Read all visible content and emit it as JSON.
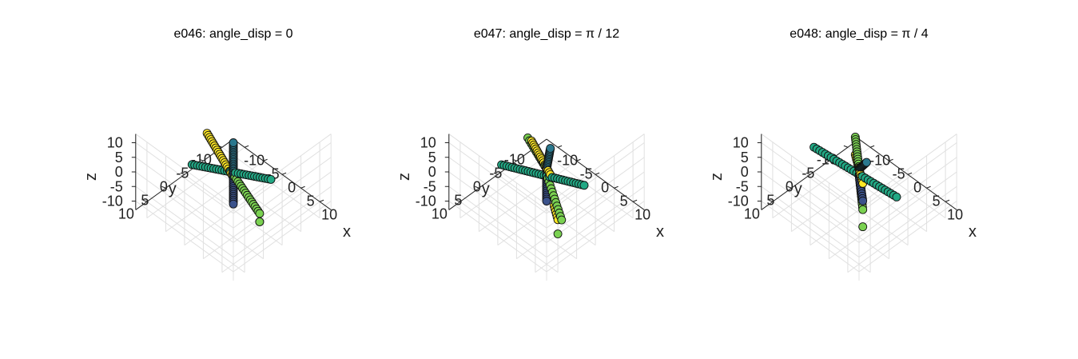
{
  "chart_data": [
    {
      "type": "scatter",
      "title": "e046: angle_disp = 0",
      "xlabel": "x",
      "ylabel": "y",
      "zlabel": "z",
      "xlim": [
        -13,
        13
      ],
      "ylim": [
        -13,
        13
      ],
      "zlim": [
        -13,
        13
      ],
      "xticks": [
        -10,
        -5,
        0,
        5,
        10
      ],
      "yticks": [
        -10,
        -5,
        0,
        5,
        10
      ],
      "zticks": [
        -10,
        -5,
        0,
        5,
        10
      ],
      "xtick_labels": [
        "-10",
        "-5",
        "0",
        "5",
        "10"
      ],
      "ytick_labels": [
        "-10",
        "-5",
        "0",
        "5",
        "10"
      ],
      "ztick_labels": [
        "-10",
        "-5",
        "0",
        "5",
        "10"
      ],
      "grid": true,
      "series": [
        {
          "color": "#fde725",
          "start": [
            -9,
            -2,
            3
          ],
          "end": [
            1,
            1,
            0
          ],
          "count": 22
        },
        {
          "color": "#7ad151",
          "start": [
            0,
            0,
            -1
          ],
          "end": [
            9,
            2,
            -4
          ],
          "count": 18
        },
        {
          "color": "#7ad151",
          "start": [
            10,
            3,
            -5
          ],
          "end": [
            10,
            3,
            -5
          ],
          "count": 2
        },
        {
          "color": "#2a788e",
          "start": [
            0,
            0,
            1
          ],
          "end": [
            0,
            0,
            10
          ],
          "count": 16
        },
        {
          "color": "#3b528b",
          "start": [
            0,
            0,
            -1
          ],
          "end": [
            0,
            0,
            -11
          ],
          "count": 16
        },
        {
          "color": "#22a884",
          "start": [
            -9,
            2,
            -4
          ],
          "end": [
            8,
            -2,
            3
          ],
          "count": 30
        }
      ]
    },
    {
      "type": "scatter",
      "title": "e047: angle_disp = π / 12",
      "xlabel": "x",
      "ylabel": "y",
      "zlabel": "z",
      "xlim": [
        -13,
        13
      ],
      "ylim": [
        -13,
        13
      ],
      "zlim": [
        -13,
        13
      ],
      "xticks": [
        -10,
        -5,
        0,
        5,
        10
      ],
      "yticks": [
        -10,
        -5,
        0,
        5,
        10
      ],
      "zticks": [
        -10,
        -5,
        0,
        5,
        10
      ],
      "xtick_labels": [
        "-10",
        "-5",
        "0",
        "5",
        "10"
      ],
      "ytick_labels": [
        "-10",
        "-5",
        "0",
        "5",
        "10"
      ],
      "ztick_labels": [
        "-10",
        "-5",
        "0",
        "5",
        "10"
      ],
      "grid": true,
      "series": [
        {
          "color": "#fde725",
          "start": [
            -5,
            -1,
            5
          ],
          "end": [
            1,
            0,
            0
          ],
          "count": 18
        },
        {
          "color": "#fde725",
          "start": [
            4,
            2,
            -6
          ],
          "end": [
            6,
            3,
            -8
          ],
          "count": 6
        },
        {
          "color": "#7ad151",
          "start": [
            -5,
            0,
            7
          ],
          "end": [
            0,
            0,
            1
          ],
          "count": 12
        },
        {
          "color": "#7ad151",
          "start": [
            0,
            0,
            -1
          ],
          "end": [
            6,
            2,
            -9
          ],
          "count": 14
        },
        {
          "color": "#7ad151",
          "start": [
            7,
            4,
            -11
          ],
          "end": [
            7,
            4,
            -11
          ],
          "count": 1
        },
        {
          "color": "#2a788e",
          "start": [
            0,
            0,
            1
          ],
          "end": [
            1,
            0,
            9
          ],
          "count": 14
        },
        {
          "color": "#3b528b",
          "start": [
            0,
            0,
            -1
          ],
          "end": [
            0,
            0,
            -10
          ],
          "count": 14
        },
        {
          "color": "#22a884",
          "start": [
            -10,
            2,
            -5
          ],
          "end": [
            8,
            -2,
            1
          ],
          "count": 32
        }
      ]
    },
    {
      "type": "scatter",
      "title": "e048: angle_disp = π / 4",
      "xlabel": "x",
      "ylabel": "y",
      "zlabel": "z",
      "xlim": [
        -13,
        13
      ],
      "ylim": [
        -13,
        13
      ],
      "zlim": [
        -13,
        13
      ],
      "xticks": [
        -10,
        -5,
        0,
        5,
        10
      ],
      "yticks": [
        -10,
        -5,
        0,
        5,
        10
      ],
      "zticks": [
        -10,
        -5,
        0,
        5,
        10
      ],
      "xtick_labels": [
        "-10",
        "-5",
        "0",
        "5",
        "10"
      ],
      "ytick_labels": [
        "-10",
        "-5",
        "0",
        "5",
        "10"
      ],
      "ztick_labels": [
        "-10",
        "-5",
        "0",
        "5",
        "10"
      ],
      "grid": true,
      "series": [
        {
          "color": "#7ad151",
          "start": [
            -1,
            0,
            11
          ],
          "end": [
            0,
            0,
            1
          ],
          "count": 14
        },
        {
          "color": "#7ad151",
          "start": [
            0,
            0,
            -1
          ],
          "end": [
            1,
            0,
            -12
          ],
          "count": 14
        },
        {
          "color": "#7ad151",
          "start": [
            2,
            1,
            -16
          ],
          "end": [
            2,
            1,
            -16
          ],
          "count": 1
        },
        {
          "color": "#fde725",
          "start": [
            -1,
            0,
            5
          ],
          "end": [
            1,
            0,
            -3
          ],
          "count": 14
        },
        {
          "color": "#2a788e",
          "start": [
            0,
            0,
            1
          ],
          "end": [
            3,
            1,
            7
          ],
          "count": 12
        },
        {
          "color": "#3b528b",
          "start": [
            0,
            0,
            -1
          ],
          "end": [
            1,
            0,
            -9
          ],
          "count": 12
        },
        {
          "color": "#22a884",
          "start": [
            -10,
            2,
            1
          ],
          "end": [
            8,
            -2,
            -3
          ],
          "count": 30
        }
      ]
    }
  ]
}
